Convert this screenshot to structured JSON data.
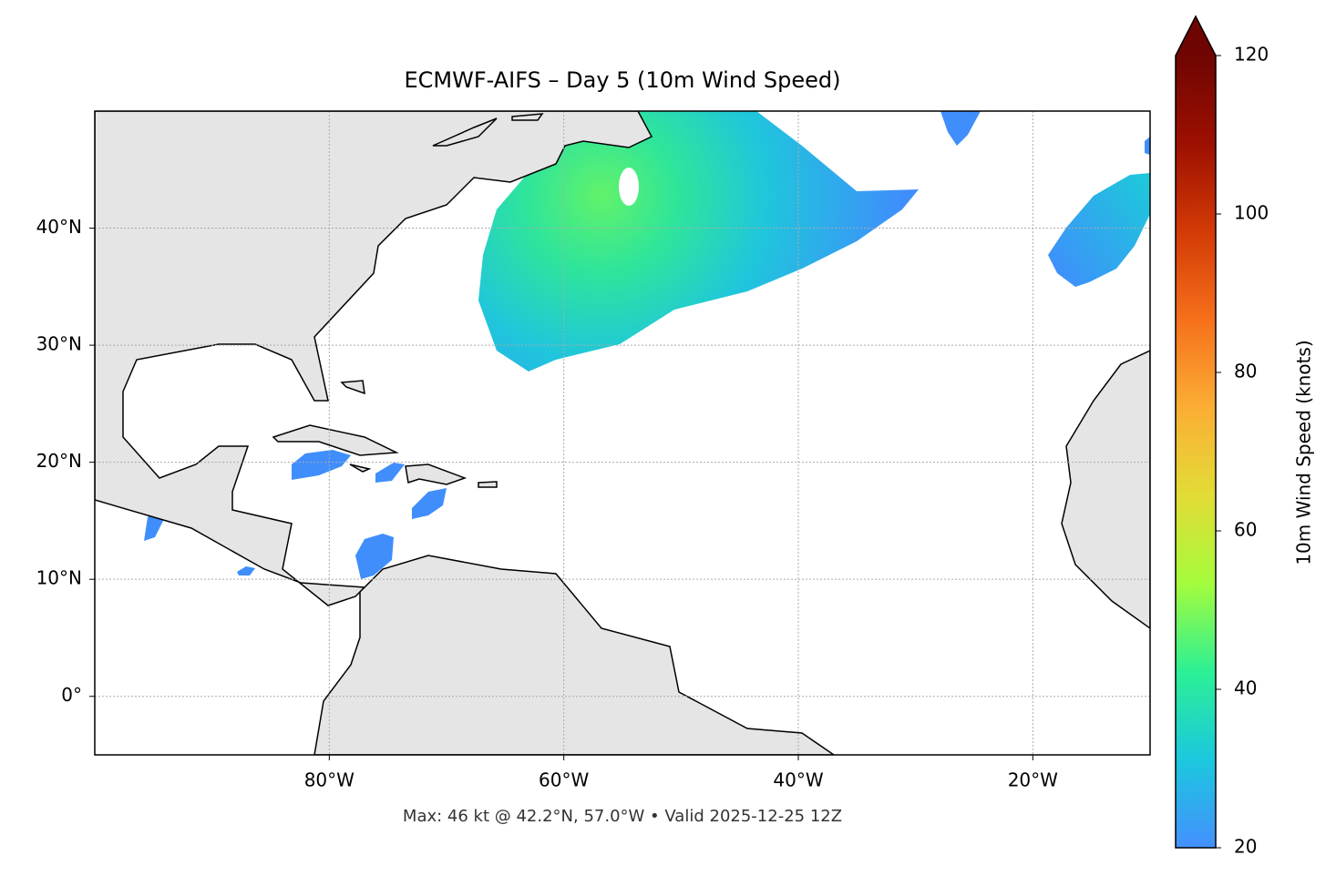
{
  "chart_data": {
    "type": "map",
    "title": "ECMWF-AIFS – Day 5 (10m Wind Speed)",
    "footer": "Max: 46 kt @ 42.2°N, 57.0°W • Valid 2025-12-25 12Z",
    "xlim": [
      -100,
      -10
    ],
    "ylim": [
      -5,
      50
    ],
    "xticks": [
      {
        "value": -80,
        "label": "80°W"
      },
      {
        "value": -60,
        "label": "60°W"
      },
      {
        "value": -40,
        "label": "40°W"
      },
      {
        "value": -20,
        "label": "20°W"
      }
    ],
    "yticks": [
      {
        "value": 0,
        "label": "0°"
      },
      {
        "value": 10,
        "label": "10°N"
      },
      {
        "value": 20,
        "label": "20°N"
      },
      {
        "value": 30,
        "label": "30°N"
      },
      {
        "value": 40,
        "label": "40°N"
      }
    ],
    "grid": true,
    "colorbar": {
      "label": "10m Wind Speed (knots)",
      "lim": [
        20,
        120
      ],
      "ticks": [
        20,
        40,
        60,
        80,
        100,
        120
      ],
      "extend": "max",
      "colors": [
        "#4490fe",
        "#1bc8de",
        "#2cf095",
        "#a4fc3c",
        "#e3dc36",
        "#fbae35",
        "#f6701b",
        "#d33a06",
        "#9d1001",
        "#6f0502"
      ]
    }
  }
}
